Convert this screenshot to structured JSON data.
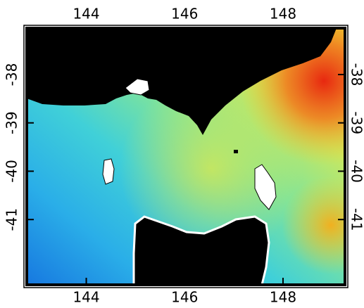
{
  "map": {
    "xlim": [
      142.79,
      149.26
    ],
    "ylim": [
      -42.35,
      -37.04
    ],
    "xticks": [
      144,
      146,
      148
    ],
    "yticks": [
      -38,
      -39,
      -40,
      -41
    ]
  }
}
